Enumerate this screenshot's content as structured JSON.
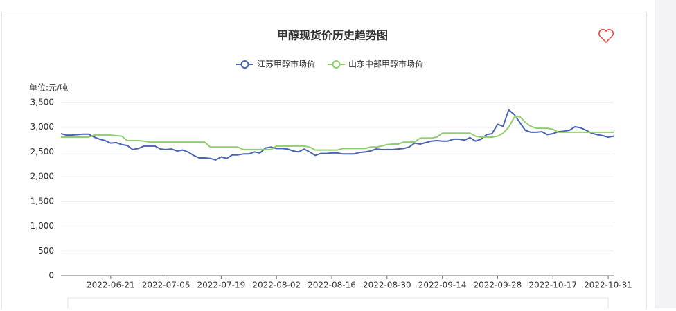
{
  "chart_data": {
    "type": "line",
    "title": "甲醇现货价历史趋势图",
    "y_label": "单位:元/吨",
    "categories": [
      null,
      null,
      null,
      null,
      null,
      null,
      null,
      null,
      null,
      "2022-06-21",
      null,
      null,
      null,
      null,
      null,
      null,
      null,
      null,
      null,
      "2022-07-05",
      null,
      null,
      null,
      null,
      null,
      null,
      null,
      null,
      null,
      "2022-07-19",
      null,
      null,
      null,
      null,
      null,
      null,
      null,
      null,
      null,
      "2022-08-02",
      null,
      null,
      null,
      null,
      null,
      null,
      null,
      null,
      null,
      "2022-08-16",
      null,
      null,
      null,
      null,
      null,
      null,
      null,
      null,
      null,
      "2022-08-30",
      null,
      null,
      null,
      null,
      null,
      null,
      null,
      null,
      null,
      "2022-09-14",
      null,
      null,
      null,
      null,
      null,
      null,
      null,
      null,
      null,
      "2022-09-28",
      null,
      null,
      null,
      null,
      null,
      null,
      null,
      null,
      null,
      "2022-10-17",
      null,
      null,
      null,
      null,
      null,
      null,
      null,
      null,
      null,
      "2022-10-31",
      null
    ],
    "series": [
      {
        "name": "江苏甲醇市场价",
        "color": "#4a63b3",
        "values": [
          2870,
          2840,
          2840,
          2850,
          2860,
          2860,
          2800,
          2760,
          2730,
          2680,
          2690,
          2650,
          2630,
          2550,
          2570,
          2620,
          2620,
          2620,
          2560,
          2550,
          2560,
          2520,
          2540,
          2500,
          2430,
          2380,
          2380,
          2370,
          2340,
          2400,
          2370,
          2440,
          2440,
          2460,
          2460,
          2500,
          2480,
          2580,
          2600,
          2570,
          2570,
          2560,
          2520,
          2500,
          2560,
          2500,
          2430,
          2470,
          2470,
          2480,
          2480,
          2460,
          2460,
          2460,
          2490,
          2500,
          2520,
          2560,
          2550,
          2550,
          2550,
          2560,
          2570,
          2600,
          2680,
          2660,
          2690,
          2720,
          2730,
          2720,
          2720,
          2760,
          2760,
          2740,
          2790,
          2720,
          2760,
          2850,
          2870,
          3060,
          3020,
          3350,
          3260,
          3100,
          2940,
          2900,
          2900,
          2910,
          2850,
          2870,
          2910,
          2920,
          2940,
          3010,
          2990,
          2940,
          2880,
          2850,
          2830,
          2800,
          2820
        ]
      },
      {
        "name": "山东中部甲醇市场价",
        "color": "#8fcf6f",
        "values": [
          2800,
          2800,
          2800,
          2800,
          2800,
          2800,
          2840,
          2840,
          2840,
          2840,
          2830,
          2820,
          2730,
          2730,
          2730,
          2720,
          2700,
          2700,
          2700,
          2700,
          2700,
          2700,
          2700,
          2700,
          2700,
          2700,
          2700,
          2600,
          2600,
          2600,
          2600,
          2600,
          2600,
          2550,
          2550,
          2550,
          2550,
          2550,
          2550,
          2620,
          2620,
          2620,
          2620,
          2620,
          2620,
          2600,
          2540,
          2540,
          2540,
          2540,
          2540,
          2570,
          2570,
          2570,
          2570,
          2570,
          2600,
          2600,
          2620,
          2650,
          2660,
          2660,
          2700,
          2700,
          2700,
          2780,
          2780,
          2780,
          2800,
          2880,
          2880,
          2880,
          2880,
          2880,
          2880,
          2820,
          2800,
          2800,
          2800,
          2820,
          2880,
          3000,
          3200,
          3220,
          3100,
          3020,
          2980,
          2980,
          2980,
          2960,
          2900,
          2900,
          2900,
          2900,
          2900,
          2900,
          2900,
          2900,
          2900,
          2900,
          2900
        ]
      }
    ],
    "ylim": [
      0,
      3500
    ],
    "yticks": [
      0,
      500,
      {
        "value": 1000,
        "label": "1,000"
      },
      {
        "value": 1500,
        "label": "1,500"
      },
      {
        "value": 2000,
        "label": "2,000"
      },
      {
        "value": 2500,
        "label": "2,500"
      },
      {
        "value": 3000,
        "label": "3,000"
      },
      {
        "value": 3500,
        "label": "3,500"
      }
    ],
    "grid": true,
    "legend": "top"
  }
}
